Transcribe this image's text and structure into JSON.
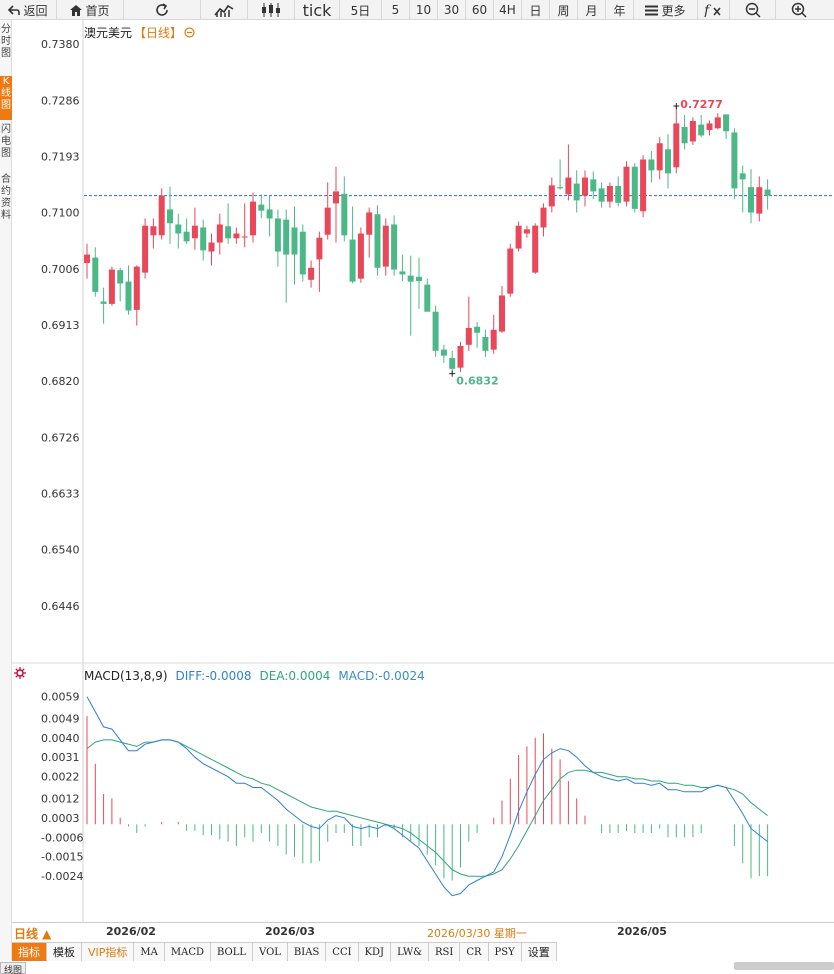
{
  "toolbar": {
    "back": "返回",
    "home": "首页",
    "tick": "tick",
    "p5d": "5日",
    "p5": "5",
    "p10": "10",
    "p30": "30",
    "p60": "60",
    "p4h": "4H",
    "day": "日",
    "week": "周",
    "month": "月",
    "year": "年",
    "more": "更多"
  },
  "side_tabs": [
    "分时图",
    "K线图",
    "闪电图",
    "合约资料"
  ],
  "title": {
    "name": "澳元美元",
    "period": "【日线】"
  },
  "macd_header": {
    "name": "MACD(13,8,9)",
    "diff": "DIFF:-0.0008",
    "dea": "DEA:0.0004",
    "macd": "MACD:-0.0024"
  },
  "period_button": "日线 ▲",
  "date_labels": [
    "2026/02",
    "2026/03",
    "2026/03/30 星期一",
    "2026/05"
  ],
  "indicator_tabs": [
    "指标",
    "模板",
    "VIP指标",
    "MA",
    "MACD",
    "BOLL",
    "VOL",
    "BIAS",
    "CCI",
    "KDJ",
    "LW&",
    "RSI",
    "CR",
    "PSY",
    "设置"
  ],
  "bottom_tab": "线图",
  "colors": {
    "up": "#e8485a",
    "down": "#4cb888",
    "diff": "#2f7fd8",
    "dea": "#2fa57a",
    "accent": "#f07a12",
    "last": "#2a6fbf"
  },
  "chart_data": [
    {
      "type": "candlestick",
      "symbol": "澳元美元",
      "ylim": [
        0.6376,
        0.738
      ],
      "y_ticks": [
        "0.7380",
        "0.7286",
        "0.7193",
        "0.7100",
        "0.7006",
        "0.6913",
        "0.6820",
        "0.6726",
        "0.6633",
        "0.6540",
        "0.6446"
      ],
      "high_label": "0.7277",
      "low_label": "0.6832",
      "last_price": 0.7128,
      "candles": [
        {
          "o": 0.7016,
          "h": 0.7048,
          "l": 0.699,
          "c": 0.703
        },
        {
          "o": 0.7025,
          "h": 0.7042,
          "l": 0.696,
          "c": 0.6968
        },
        {
          "o": 0.6952,
          "h": 0.6975,
          "l": 0.6915,
          "c": 0.6948
        },
        {
          "o": 0.6948,
          "h": 0.701,
          "l": 0.6945,
          "c": 0.7005
        },
        {
          "o": 0.7004,
          "h": 0.7008,
          "l": 0.6952,
          "c": 0.6982
        },
        {
          "o": 0.6985,
          "h": 0.7012,
          "l": 0.693,
          "c": 0.6937
        },
        {
          "o": 0.6938,
          "h": 0.7012,
          "l": 0.6912,
          "c": 0.701
        },
        {
          "o": 0.7,
          "h": 0.709,
          "l": 0.699,
          "c": 0.7078
        },
        {
          "o": 0.7062,
          "h": 0.709,
          "l": 0.704,
          "c": 0.7077
        },
        {
          "o": 0.7062,
          "h": 0.714,
          "l": 0.7055,
          "c": 0.7128
        },
        {
          "o": 0.7105,
          "h": 0.7143,
          "l": 0.7048,
          "c": 0.7082
        },
        {
          "o": 0.708,
          "h": 0.7098,
          "l": 0.704,
          "c": 0.7065
        },
        {
          "o": 0.7068,
          "h": 0.709,
          "l": 0.7048,
          "c": 0.7052
        },
        {
          "o": 0.7057,
          "h": 0.7108,
          "l": 0.7038,
          "c": 0.7078
        },
        {
          "o": 0.7075,
          "h": 0.7088,
          "l": 0.702,
          "c": 0.7037
        },
        {
          "o": 0.7035,
          "h": 0.7065,
          "l": 0.7012,
          "c": 0.705
        },
        {
          "o": 0.705,
          "h": 0.7098,
          "l": 0.703,
          "c": 0.708
        },
        {
          "o": 0.7077,
          "h": 0.7115,
          "l": 0.7048,
          "c": 0.7057
        },
        {
          "o": 0.7057,
          "h": 0.7075,
          "l": 0.7048,
          "c": 0.7065
        },
        {
          "o": 0.706,
          "h": 0.7115,
          "l": 0.7042,
          "c": 0.706
        },
        {
          "o": 0.7062,
          "h": 0.7133,
          "l": 0.705,
          "c": 0.7118
        },
        {
          "o": 0.7113,
          "h": 0.713,
          "l": 0.709,
          "c": 0.7103
        },
        {
          "o": 0.7105,
          "h": 0.7128,
          "l": 0.706,
          "c": 0.709
        },
        {
          "o": 0.709,
          "h": 0.7105,
          "l": 0.701,
          "c": 0.7035
        },
        {
          "o": 0.7088,
          "h": 0.7105,
          "l": 0.695,
          "c": 0.703
        },
        {
          "o": 0.7075,
          "h": 0.711,
          "l": 0.698,
          "c": 0.703
        },
        {
          "o": 0.7068,
          "h": 0.708,
          "l": 0.6985,
          "c": 0.6997
        },
        {
          "o": 0.6988,
          "h": 0.702,
          "l": 0.6975,
          "c": 0.7008
        },
        {
          "o": 0.7022,
          "h": 0.7068,
          "l": 0.6968,
          "c": 0.7058
        },
        {
          "o": 0.7063,
          "h": 0.715,
          "l": 0.7055,
          "c": 0.7108
        },
        {
          "o": 0.7115,
          "h": 0.7176,
          "l": 0.705,
          "c": 0.7135
        },
        {
          "o": 0.7131,
          "h": 0.716,
          "l": 0.7052,
          "c": 0.7062
        },
        {
          "o": 0.7055,
          "h": 0.711,
          "l": 0.6982,
          "c": 0.6985
        },
        {
          "o": 0.699,
          "h": 0.7075,
          "l": 0.6983,
          "c": 0.7065
        },
        {
          "o": 0.7063,
          "h": 0.7108,
          "l": 0.7025,
          "c": 0.71
        },
        {
          "o": 0.7097,
          "h": 0.7112,
          "l": 0.6995,
          "c": 0.7008
        },
        {
          "o": 0.701,
          "h": 0.709,
          "l": 0.6995,
          "c": 0.7078
        },
        {
          "o": 0.708,
          "h": 0.7095,
          "l": 0.6995,
          "c": 0.7005
        },
        {
          "o": 0.7002,
          "h": 0.703,
          "l": 0.6986,
          "c": 0.6997
        },
        {
          "o": 0.6995,
          "h": 0.7028,
          "l": 0.6895,
          "c": 0.6985
        },
        {
          "o": 0.6993,
          "h": 0.7025,
          "l": 0.694,
          "c": 0.6986
        },
        {
          "o": 0.698,
          "h": 0.699,
          "l": 0.694,
          "c": 0.6935
        },
        {
          "o": 0.6935,
          "h": 0.6945,
          "l": 0.686,
          "c": 0.687
        },
        {
          "o": 0.6872,
          "h": 0.688,
          "l": 0.685,
          "c": 0.6862
        },
        {
          "o": 0.6858,
          "h": 0.687,
          "l": 0.6832,
          "c": 0.684
        },
        {
          "o": 0.6842,
          "h": 0.6885,
          "l": 0.6835,
          "c": 0.6878
        },
        {
          "o": 0.688,
          "h": 0.696,
          "l": 0.687,
          "c": 0.6908
        },
        {
          "o": 0.691,
          "h": 0.6918,
          "l": 0.6875,
          "c": 0.69
        },
        {
          "o": 0.6893,
          "h": 0.6905,
          "l": 0.686,
          "c": 0.687
        },
        {
          "o": 0.6872,
          "h": 0.693,
          "l": 0.6865,
          "c": 0.6905
        },
        {
          "o": 0.6902,
          "h": 0.6978,
          "l": 0.69,
          "c": 0.6962
        },
        {
          "o": 0.6965,
          "h": 0.7048,
          "l": 0.696,
          "c": 0.704
        },
        {
          "o": 0.704,
          "h": 0.7085,
          "l": 0.7035,
          "c": 0.7078
        },
        {
          "o": 0.7065,
          "h": 0.7078,
          "l": 0.7058,
          "c": 0.7072
        },
        {
          "o": 0.7,
          "h": 0.7082,
          "l": 0.6998,
          "c": 0.7078
        },
        {
          "o": 0.7075,
          "h": 0.7115,
          "l": 0.706,
          "c": 0.7108
        },
        {
          "o": 0.711,
          "h": 0.7158,
          "l": 0.71,
          "c": 0.7145
        },
        {
          "o": 0.7142,
          "h": 0.7188,
          "l": 0.7138,
          "c": 0.714
        },
        {
          "o": 0.713,
          "h": 0.7213,
          "l": 0.712,
          "c": 0.7158
        },
        {
          "o": 0.7148,
          "h": 0.717,
          "l": 0.71,
          "c": 0.712
        },
        {
          "o": 0.7128,
          "h": 0.717,
          "l": 0.711,
          "c": 0.7158
        },
        {
          "o": 0.7155,
          "h": 0.7168,
          "l": 0.7122,
          "c": 0.7135
        },
        {
          "o": 0.714,
          "h": 0.715,
          "l": 0.7108,
          "c": 0.7118
        },
        {
          "o": 0.7118,
          "h": 0.715,
          "l": 0.7108,
          "c": 0.7144
        },
        {
          "o": 0.7144,
          "h": 0.716,
          "l": 0.711,
          "c": 0.7116
        },
        {
          "o": 0.7118,
          "h": 0.7185,
          "l": 0.711,
          "c": 0.7176
        },
        {
          "o": 0.7176,
          "h": 0.7182,
          "l": 0.71,
          "c": 0.7106
        },
        {
          "o": 0.7102,
          "h": 0.7195,
          "l": 0.7092,
          "c": 0.7188
        },
        {
          "o": 0.7188,
          "h": 0.7202,
          "l": 0.715,
          "c": 0.717
        },
        {
          "o": 0.717,
          "h": 0.7225,
          "l": 0.7155,
          "c": 0.7215
        },
        {
          "o": 0.7205,
          "h": 0.723,
          "l": 0.714,
          "c": 0.7165
        },
        {
          "o": 0.7175,
          "h": 0.7277,
          "l": 0.7165,
          "c": 0.7248
        },
        {
          "o": 0.7242,
          "h": 0.7262,
          "l": 0.7205,
          "c": 0.7215
        },
        {
          "o": 0.7218,
          "h": 0.7258,
          "l": 0.7212,
          "c": 0.7252
        },
        {
          "o": 0.7246,
          "h": 0.7262,
          "l": 0.7225,
          "c": 0.7228
        },
        {
          "o": 0.7237,
          "h": 0.7253,
          "l": 0.7228,
          "c": 0.7248
        },
        {
          "o": 0.724,
          "h": 0.7265,
          "l": 0.7238,
          "c": 0.7258
        },
        {
          "o": 0.7263,
          "h": 0.7262,
          "l": 0.7222,
          "c": 0.7235
        },
        {
          "o": 0.7233,
          "h": 0.724,
          "l": 0.7122,
          "c": 0.714
        },
        {
          "o": 0.7165,
          "h": 0.7178,
          "l": 0.71,
          "c": 0.7155
        },
        {
          "o": 0.7142,
          "h": 0.7172,
          "l": 0.7082,
          "c": 0.71
        },
        {
          "o": 0.7098,
          "h": 0.716,
          "l": 0.7085,
          "c": 0.7142
        },
        {
          "o": 0.7138,
          "h": 0.7155,
          "l": 0.7105,
          "c": 0.7128
        }
      ]
    },
    {
      "type": "macd",
      "name": "MACD(13,8,9)",
      "ylim": [
        -0.0035,
        0.0063
      ],
      "y_ticks": [
        "0.0059",
        "0.0049",
        "0.0040",
        "0.0031",
        "0.0022",
        "0.0012",
        "0.0003",
        "-0.0006",
        "-0.0015",
        "-0.0024"
      ],
      "diff": [
        0.0059,
        0.0052,
        0.0045,
        0.0044,
        0.0039,
        0.0034,
        0.0034,
        0.0037,
        0.0038,
        0.0039,
        0.0039,
        0.0038,
        0.0035,
        0.0031,
        0.0028,
        0.0026,
        0.0024,
        0.0022,
        0.0019,
        0.0019,
        0.0017,
        0.0017,
        0.0014,
        0.0011,
        0.0007,
        0.0004,
        0.0001,
        -0.0001,
        -0.0002,
        0.0002,
        0.0004,
        0.0003,
        -0.0001,
        -0.0002,
        -0.0001,
        -0.0002,
        0.0,
        -0.0002,
        -0.0005,
        -0.0008,
        -0.0011,
        -0.0017,
        -0.0023,
        -0.0029,
        -0.0033,
        -0.0032,
        -0.0028,
        -0.0026,
        -0.0024,
        -0.0022,
        -0.0015,
        -0.0005,
        0.0006,
        0.0015,
        0.0023,
        0.003,
        0.0033,
        0.0035,
        0.0034,
        0.0031,
        0.0027,
        0.0024,
        0.0022,
        0.0021,
        0.002,
        0.0021,
        0.0019,
        0.0019,
        0.0018,
        0.0019,
        0.0016,
        0.0016,
        0.0015,
        0.0015,
        0.0015,
        0.0017,
        0.0018,
        0.0017,
        0.0011,
        0.0005,
        -0.0002,
        -0.0005,
        -0.0008
      ],
      "dea": [
        0.0035,
        0.0038,
        0.0039,
        0.0039,
        0.0038,
        0.0037,
        0.0036,
        0.0038,
        0.0038,
        0.0039,
        0.0039,
        0.0038,
        0.0036,
        0.0034,
        0.0032,
        0.003,
        0.0028,
        0.0026,
        0.0024,
        0.0022,
        0.0021,
        0.0019,
        0.0018,
        0.0016,
        0.0014,
        0.0012,
        0.001,
        0.0008,
        0.0007,
        0.0006,
        0.0006,
        0.0005,
        0.0004,
        0.0003,
        0.0002,
        0.0001,
        0.0,
        -0.0001,
        -0.0002,
        -0.0004,
        -0.0007,
        -0.001,
        -0.0013,
        -0.0017,
        -0.0021,
        -0.0023,
        -0.0024,
        -0.0024,
        -0.0024,
        -0.0023,
        -0.0021,
        -0.0016,
        -0.001,
        -0.0003,
        0.0004,
        0.0011,
        0.0016,
        0.0021,
        0.0024,
        0.0025,
        0.0025,
        0.0024,
        0.0024,
        0.0023,
        0.0022,
        0.0022,
        0.0021,
        0.0021,
        0.002,
        0.002,
        0.0019,
        0.0019,
        0.0018,
        0.0018,
        0.0017,
        0.0017,
        0.0018,
        0.0017,
        0.0016,
        0.0014,
        0.001,
        0.0007,
        0.0004
      ],
      "histogram": [
        0.005,
        0.0028,
        0.0014,
        0.0012,
        0.0003,
        -0.0001,
        -0.0004,
        -0.0001,
        0.0,
        0.0001,
        0.0,
        0.0001,
        -0.0003,
        -0.0003,
        -0.0005,
        -0.0005,
        -0.0007,
        -0.0008,
        -0.001,
        -0.0006,
        -0.0008,
        -0.0004,
        -0.0008,
        -0.001,
        -0.0014,
        -0.0015,
        -0.0018,
        -0.0018,
        -0.0017,
        -0.0008,
        -0.0004,
        -0.0004,
        -0.001,
        -0.001,
        -0.0006,
        -0.0006,
        -0.0001,
        -0.0002,
        -0.0006,
        -0.0008,
        -0.001,
        -0.0014,
        -0.0019,
        -0.0025,
        -0.0026,
        -0.002,
        -0.0008,
        -0.0004,
        0.0,
        0.0003,
        0.0011,
        0.0021,
        0.0032,
        0.0036,
        0.004,
        0.0042,
        0.0035,
        0.003,
        0.002,
        0.0012,
        0.0004,
        0.0,
        -0.0004,
        -0.0004,
        -0.0004,
        -0.0003,
        -0.0004,
        -0.0004,
        -0.0004,
        -0.0002,
        -0.0006,
        -0.0006,
        -0.0006,
        -0.0006,
        -0.0004,
        0.0,
        0.0,
        0.0,
        -0.001,
        -0.0018,
        -0.0025,
        -0.0024,
        -0.0024
      ]
    }
  ]
}
